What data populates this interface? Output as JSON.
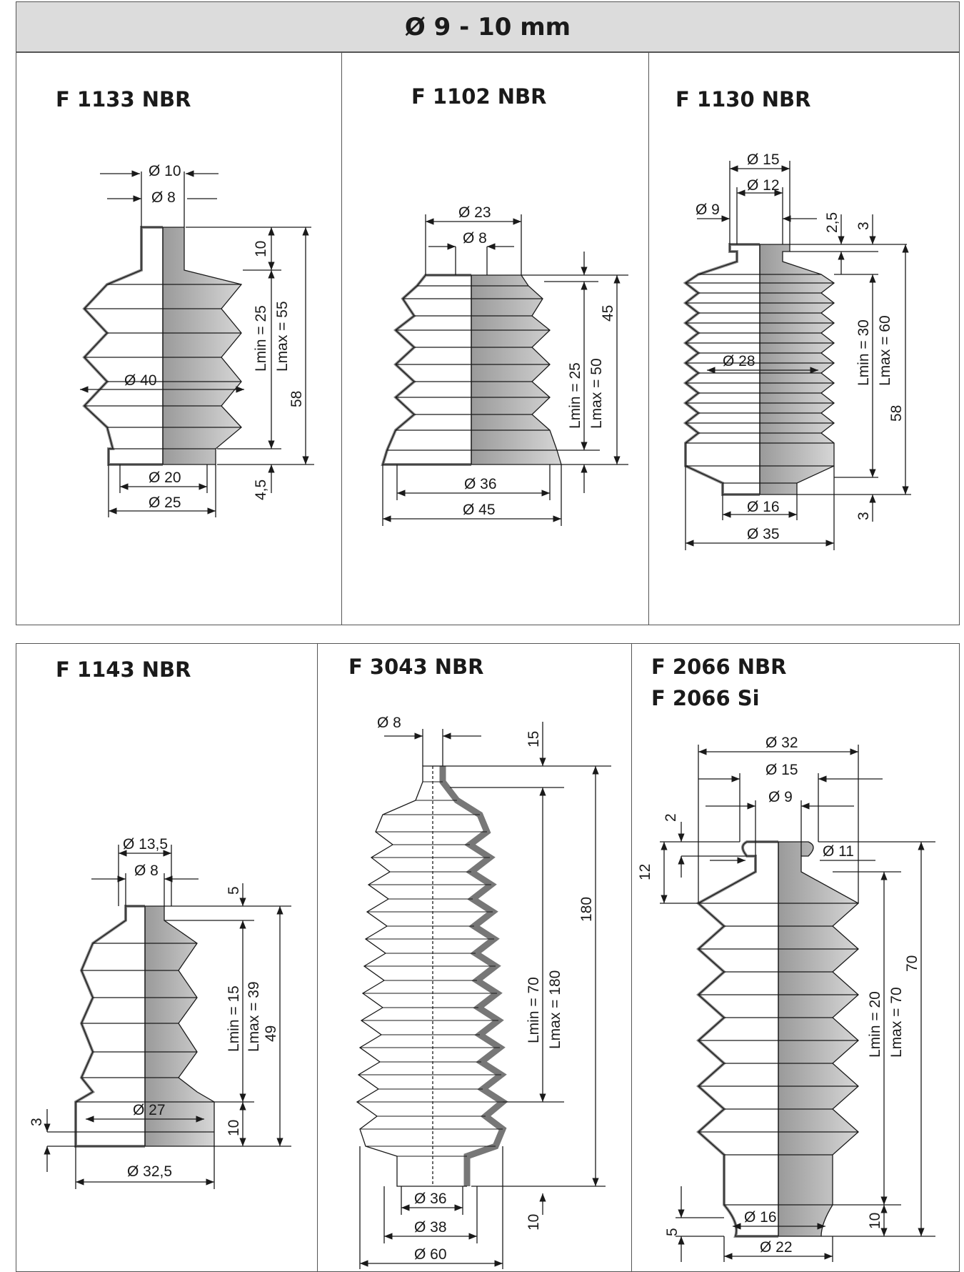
{
  "header": {
    "title": "Ø 9 - 10 mm"
  },
  "colors": {
    "header_bg": "#dcdcdc",
    "rubber_gray": "#bdbdbd",
    "rubber_dark": "#8a8a8a",
    "line": "#1a1a1a"
  },
  "products": [
    {
      "name": "F 1133 NBR",
      "labels": {
        "d_top_outer": "Ø 10",
        "d_top_inner": "Ø 8",
        "h_collar": "10",
        "lmin": "Lmin = 25",
        "lmax": "Lmax = 55",
        "d_body": "Ø 40",
        "h_total": "58",
        "d_base_inner": "Ø 20",
        "d_base_outer": "Ø 25",
        "h_base": "4,5"
      }
    },
    {
      "name": "F 1102 NBR",
      "labels": {
        "d_top_outer": "Ø 23",
        "d_top_inner": "Ø 8",
        "h_total": "45",
        "lmin": "Lmin = 25",
        "lmax": "Lmax = 50",
        "d_base_inner": "Ø 36",
        "d_base_outer": "Ø 45"
      }
    },
    {
      "name": "F 1130 NBR",
      "labels": {
        "d_top_outer": "Ø 15",
        "d_top_mid": "Ø 12",
        "d_top_inner": "Ø 9",
        "h_top1": "2,5",
        "h_top2": "3",
        "lmin": "Lmin = 30",
        "lmax": "Lmax = 60",
        "d_body": "Ø 28",
        "h_total": "58",
        "d_base_inner": "Ø 16",
        "h_base": "3",
        "d_base_outer": "Ø 35"
      }
    },
    {
      "name": "F 1143 NBR",
      "labels": {
        "d_top_outer": "Ø 13,5",
        "d_top_inner": "Ø 8",
        "h_top": "5",
        "lmin": "Lmin = 15",
        "lmax": "Lmax = 39",
        "h_total": "49",
        "d_base_inner": "Ø 27",
        "h_base": "3",
        "h_base2": "10",
        "d_base_outer": "Ø 32,5"
      }
    },
    {
      "name": "F 3043 NBR",
      "labels": {
        "d_top": "Ø 8",
        "h_top": "15",
        "h_total": "180",
        "lmin": "Lmin = 70",
        "lmax": "Lmax = 180",
        "h_base": "10",
        "d_base_1": "Ø 36",
        "d_base_2": "Ø 38",
        "d_base_3": "Ø 60"
      }
    },
    {
      "name": "F 2066 NBR",
      "name2": "F 2066 Si",
      "labels": {
        "d_top_outer": "Ø 32",
        "d_top_mid": "Ø 15",
        "d_top_inner": "Ø 9",
        "h_top1": "2",
        "h_top2": "12",
        "d_groove": "Ø 11",
        "h_total": "70",
        "lmin": "Lmin = 20",
        "lmax": "Lmax = 70",
        "h_base1": "10",
        "h_base2": "5",
        "d_base_inner": "Ø 16",
        "d_base_outer": "Ø 22"
      }
    }
  ]
}
